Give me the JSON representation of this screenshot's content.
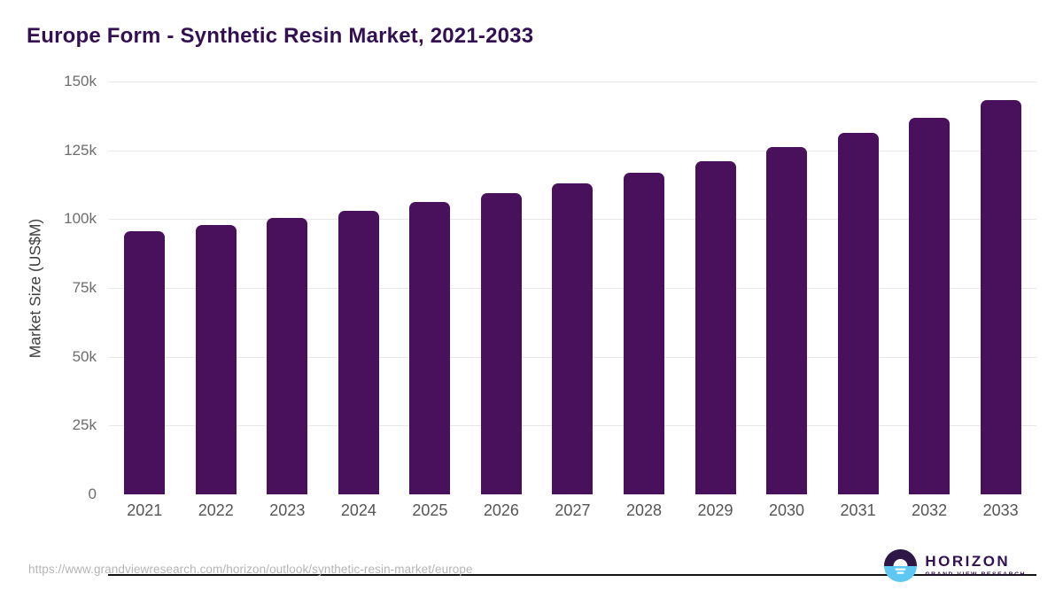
{
  "header": {
    "title": "Europe Form - Synthetic Resin Market, 2021-2033"
  },
  "chart_data": {
    "type": "bar",
    "title": "Europe Form - Synthetic Resin Market, 2021-2033",
    "xlabel": "",
    "ylabel": "Market Size (US$M)",
    "categories": [
      "2021",
      "2022",
      "2023",
      "2024",
      "2025",
      "2026",
      "2027",
      "2028",
      "2029",
      "2030",
      "2031",
      "2032",
      "2033"
    ],
    "values": [
      95500,
      97800,
      100300,
      103100,
      106100,
      109300,
      112900,
      116700,
      121100,
      126300,
      131400,
      136900,
      143300
    ],
    "ylim": [
      0,
      150000
    ],
    "yticks": [
      {
        "value": 150000,
        "label": "150k"
      },
      {
        "value": 125000,
        "label": "125k"
      },
      {
        "value": 100000,
        "label": "100k"
      },
      {
        "value": 75000,
        "label": "75k"
      },
      {
        "value": 50000,
        "label": "50k"
      },
      {
        "value": 25000,
        "label": "25k"
      },
      {
        "value": 0,
        "label": "0"
      }
    ],
    "grid": "horizontal",
    "legend": "none"
  },
  "footer": {
    "source_url": "https://www.grandviewresearch.com/horizon/outlook/synthetic-resin-market/europe",
    "logo_name": "HORIZON",
    "logo_subtext": "GRAND VIEW RESEARCH"
  },
  "colors": {
    "bar": "#49105c",
    "title": "#331051",
    "grid": "#e7e7e7",
    "axis_line": "#141414",
    "tick_text": "#6d6d6d",
    "x_label_text": "#555555",
    "url_text": "#b5b5b5",
    "logo_purple": "#2e1647",
    "logo_blue": "#5ec8f2"
  }
}
